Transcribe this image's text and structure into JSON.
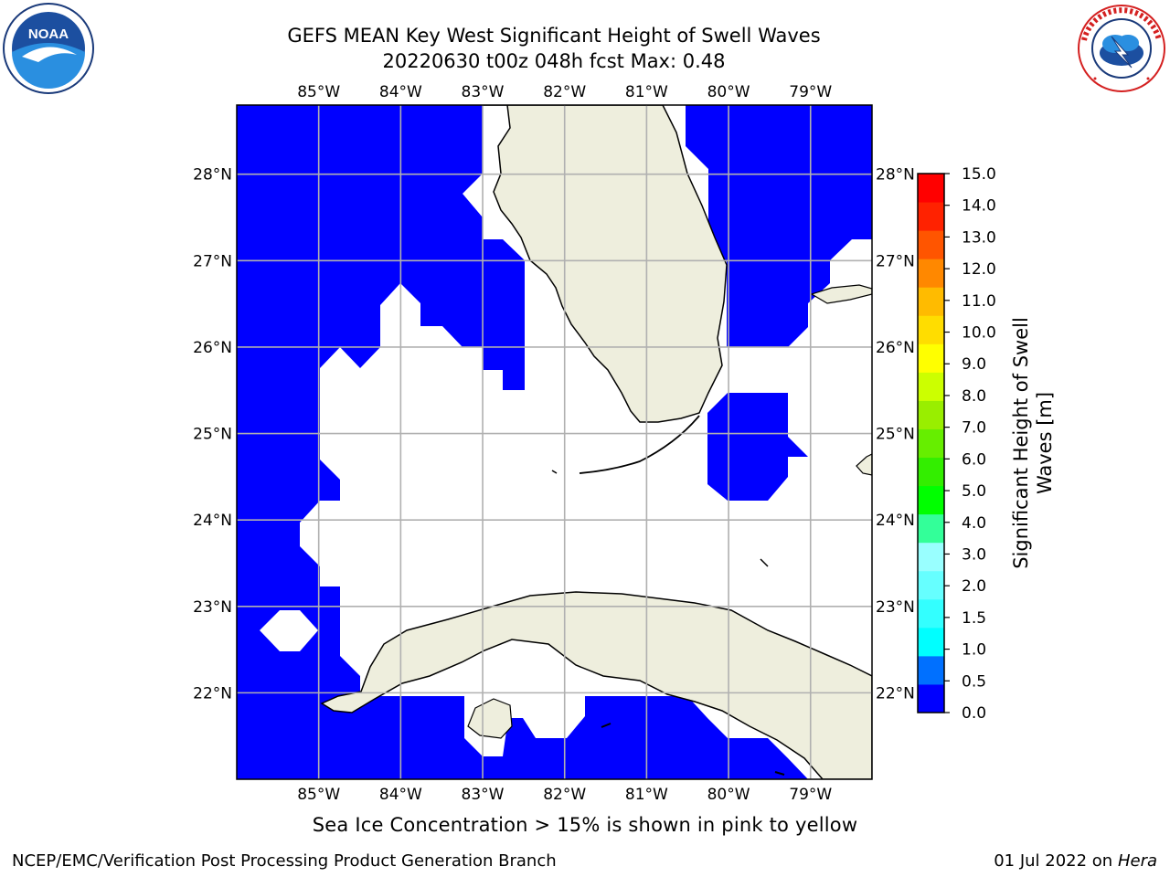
{
  "title_line1": "GEFS MEAN Key West Significant Height of Swell Waves",
  "title_line2": "20220630 t00z 048h fcst   Max: 0.48",
  "lon_labels": [
    "85°W",
    "84°W",
    "83°W",
    "82°W",
    "81°W",
    "80°W",
    "79°W"
  ],
  "lat_labels": [
    "28°N",
    "27°N",
    "26°N",
    "25°N",
    "24°N",
    "23°N",
    "22°N"
  ],
  "map": {
    "lon_range": [
      -86.0,
      -78.25
    ],
    "lat_range": [
      21.0,
      28.8
    ],
    "grid": true,
    "colors": {
      "water_low": "#0000ff",
      "water_zero": "#ffffff",
      "land": "#eeeedd",
      "grid": "#b0b0b0"
    }
  },
  "colorbar": {
    "label": "Significant Height of Swell Waves [m]",
    "ticks": [
      "0.0",
      "0.5",
      "1.0",
      "1.5",
      "2.0",
      "3.0",
      "4.0",
      "5.0",
      "6.0",
      "7.0",
      "8.0",
      "9.0",
      "10.0",
      "11.0",
      "12.0",
      "13.0",
      "14.0",
      "15.0"
    ],
    "colors": [
      "#0000ff",
      "#0070ff",
      "#00ffff",
      "#33ffff",
      "#66ffff",
      "#99ffff",
      "#33ff99",
      "#00ff00",
      "#33ee00",
      "#66ee00",
      "#99ee00",
      "#ccff00",
      "#ffff00",
      "#ffdd00",
      "#ffbb00",
      "#ff8800",
      "#ff5500",
      "#ff2200",
      "#ff0000"
    ]
  },
  "max_value_m": 0.48,
  "caption": "Sea Ice Concentration > 15% is shown in pink to yellow",
  "footer_left": "NCEP/EMC/Verification Post Processing Product Generation Branch",
  "footer_right_prefix": "01 Jul 2022 on ",
  "footer_right_host": "Hera",
  "logos": {
    "left_icon": "noaa-logo",
    "right_icon": "nws-logo"
  }
}
